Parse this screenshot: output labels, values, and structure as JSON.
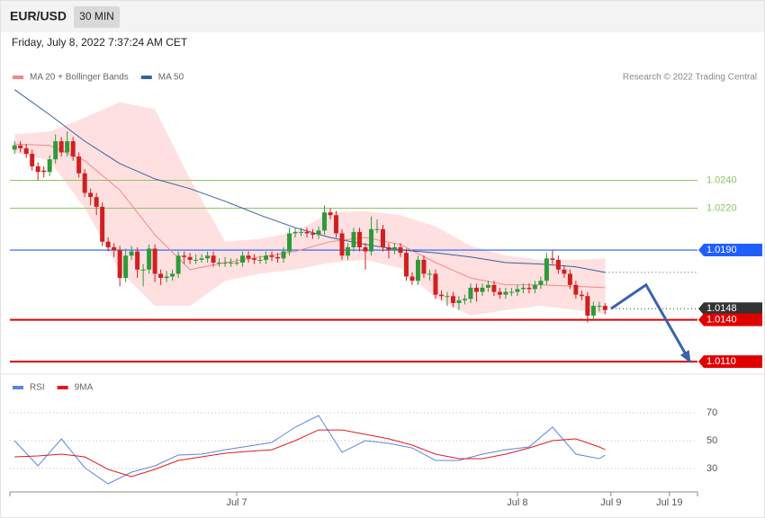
{
  "header": {
    "symbol": "EUR/USD",
    "interval": "30 MIN",
    "datetime": "Friday, July 8, 2022 7:37:24 AM CET"
  },
  "chart_data": [
    {
      "type": "candlestick",
      "credit": "Research © 2022 Trading Central",
      "xlim": [
        -0.8,
        116.8
      ],
      "ylim": [
        1.0103,
        1.0308
      ],
      "up_color": "#2e9a3a",
      "down_color": "#d21f1f",
      "ohlc": [
        [
          1.0262,
          1.0268,
          1.0259,
          1.0265
        ],
        [
          1.0265,
          1.0268,
          1.026,
          1.0263
        ],
        [
          1.0263,
          1.0266,
          1.0256,
          1.0259
        ],
        [
          1.0259,
          1.0262,
          1.0247,
          1.025
        ],
        [
          1.025,
          1.0253,
          1.024,
          1.0246
        ],
        [
          1.0247,
          1.025,
          1.0242,
          1.0246
        ],
        [
          1.0246,
          1.0258,
          1.0243,
          1.0255
        ],
        [
          1.0255,
          1.0273,
          1.0252,
          1.0268
        ],
        [
          1.0268,
          1.0271,
          1.0257,
          1.026
        ],
        [
          1.026,
          1.0275,
          1.0257,
          1.0268
        ],
        [
          1.0268,
          1.0271,
          1.0254,
          1.0257
        ],
        [
          1.0257,
          1.026,
          1.0242,
          1.0245
        ],
        [
          1.0245,
          1.0248,
          1.0228,
          1.0231
        ],
        [
          1.0231,
          1.0234,
          1.0222,
          1.0228
        ],
        [
          1.0228,
          1.0231,
          1.0215,
          1.0221
        ],
        [
          1.0221,
          1.0224,
          1.0193,
          1.0196
        ],
        [
          1.0196,
          1.0199,
          1.0189,
          1.0192
        ],
        [
          1.0192,
          1.0195,
          1.0185,
          1.019
        ],
        [
          1.019,
          1.0193,
          1.0164,
          1.017
        ],
        [
          1.017,
          1.0191,
          1.0167,
          1.0186
        ],
        [
          1.0186,
          1.0193,
          1.0183,
          1.0189
        ],
        [
          1.0189,
          1.0192,
          1.017,
          1.0176
        ],
        [
          1.0176,
          1.018,
          1.0164,
          1.0176
        ],
        [
          1.0176,
          1.0194,
          1.0173,
          1.0191
        ],
        [
          1.0191,
          1.0194,
          1.0167,
          1.0173
        ],
        [
          1.0173,
          1.0176,
          1.0165,
          1.017
        ],
        [
          1.017,
          1.0175,
          1.0167,
          1.0171
        ],
        [
          1.0171,
          1.0176,
          1.0168,
          1.0173
        ],
        [
          1.0173,
          1.0189,
          1.017,
          1.0186
        ],
        [
          1.0186,
          1.0189,
          1.018,
          1.0185
        ],
        [
          1.0185,
          1.0188,
          1.018,
          1.0183
        ],
        [
          1.0183,
          1.0187,
          1.018,
          1.0183
        ],
        [
          1.0183,
          1.0187,
          1.0181,
          1.0184
        ],
        [
          1.0184,
          1.0189,
          1.0181,
          1.0186
        ],
        [
          1.0186,
          1.0189,
          1.0178,
          1.0181
        ],
        [
          1.0181,
          1.0184,
          1.0178,
          1.0181
        ],
        [
          1.0181,
          1.0185,
          1.0178,
          1.0181
        ],
        [
          1.0181,
          1.0184,
          1.0178,
          1.0181
        ],
        [
          1.0181,
          1.0184,
          1.0179,
          1.0181
        ],
        [
          1.0181,
          1.0189,
          1.0178,
          1.0186
        ],
        [
          1.0186,
          1.0189,
          1.0181,
          1.0184
        ],
        [
          1.0184,
          1.0187,
          1.018,
          1.0183
        ],
        [
          1.0183,
          1.0186,
          1.018,
          1.0183
        ],
        [
          1.0183,
          1.0189,
          1.018,
          1.0186
        ],
        [
          1.0186,
          1.0189,
          1.0182,
          1.0185
        ],
        [
          1.0185,
          1.0188,
          1.0181,
          1.0184
        ],
        [
          1.0184,
          1.0192,
          1.0181,
          1.0189
        ],
        [
          1.0189,
          1.0206,
          1.0186,
          1.0202
        ],
        [
          1.0202,
          1.0206,
          1.0199,
          1.0203
        ],
        [
          1.0203,
          1.0206,
          1.02,
          1.0203
        ],
        [
          1.0203,
          1.0206,
          1.0199,
          1.0202
        ],
        [
          1.0202,
          1.0205,
          1.0198,
          1.0201
        ],
        [
          1.0201,
          1.0207,
          1.0198,
          1.0204
        ],
        [
          1.0204,
          1.0222,
          1.0201,
          1.0217
        ],
        [
          1.0217,
          1.022,
          1.0212,
          1.0215
        ],
        [
          1.0215,
          1.0218,
          1.0199,
          1.0202
        ],
        [
          1.0202,
          1.0205,
          1.0183,
          1.0186
        ],
        [
          1.0186,
          1.0195,
          1.0183,
          1.0192
        ],
        [
          1.0192,
          1.0206,
          1.0189,
          1.0203
        ],
        [
          1.0203,
          1.0206,
          1.0189,
          1.0192
        ],
        [
          1.0192,
          1.0195,
          1.0176,
          1.0189
        ],
        [
          1.0189,
          1.0214,
          1.0186,
          1.0205
        ],
        [
          1.0205,
          1.0212,
          1.0202,
          1.0205
        ],
        [
          1.0205,
          1.0208,
          1.0189,
          1.0192
        ],
        [
          1.0192,
          1.0195,
          1.0184,
          1.019
        ],
        [
          1.019,
          1.0195,
          1.0187,
          1.0192
        ],
        [
          1.0192,
          1.0195,
          1.0185,
          1.0188
        ],
        [
          1.0188,
          1.0191,
          1.0168,
          1.0171
        ],
        [
          1.0171,
          1.0174,
          1.0165,
          1.0168
        ],
        [
          1.0168,
          1.0186,
          1.0165,
          1.0183
        ],
        [
          1.0183,
          1.0186,
          1.017,
          1.0173
        ],
        [
          1.0173,
          1.0176,
          1.0168,
          1.0173
        ],
        [
          1.0173,
          1.0176,
          1.0155,
          1.0158
        ],
        [
          1.0158,
          1.0161,
          1.0154,
          1.0157
        ],
        [
          1.0157,
          1.016,
          1.015,
          1.0157
        ],
        [
          1.0157,
          1.016,
          1.0149,
          1.0152
        ],
        [
          1.0152,
          1.0157,
          1.0147,
          1.0154
        ],
        [
          1.0154,
          1.0158,
          1.0151,
          1.0155
        ],
        [
          1.0155,
          1.0166,
          1.0152,
          1.0163
        ],
        [
          1.0163,
          1.0166,
          1.0153,
          1.016
        ],
        [
          1.016,
          1.0166,
          1.0157,
          1.0163
        ],
        [
          1.0163,
          1.0168,
          1.016,
          1.0165
        ],
        [
          1.0165,
          1.0168,
          1.0157,
          1.016
        ],
        [
          1.016,
          1.0163,
          1.0155,
          1.0158
        ],
        [
          1.0158,
          1.0163,
          1.0155,
          1.016
        ],
        [
          1.016,
          1.0163,
          1.0157,
          1.016
        ],
        [
          1.016,
          1.0165,
          1.0157,
          1.0162
        ],
        [
          1.0162,
          1.0166,
          1.0159,
          1.0163
        ],
        [
          1.0163,
          1.0166,
          1.0159,
          1.0162
        ],
        [
          1.0162,
          1.0168,
          1.0159,
          1.0165
        ],
        [
          1.0165,
          1.0171,
          1.0162,
          1.0168
        ],
        [
          1.0168,
          1.0188,
          1.0165,
          1.0184
        ],
        [
          1.0184,
          1.019,
          1.018,
          1.0183
        ],
        [
          1.0183,
          1.0186,
          1.0173,
          1.0176
        ],
        [
          1.0176,
          1.0179,
          1.017,
          1.0173
        ],
        [
          1.0173,
          1.0176,
          1.0162,
          1.0165
        ],
        [
          1.0165,
          1.0168,
          1.0155,
          1.0158
        ],
        [
          1.0158,
          1.0161,
          1.0154,
          1.0157
        ],
        [
          1.0157,
          1.016,
          1.0138,
          1.0143
        ],
        [
          1.0143,
          1.0153,
          1.014,
          1.015
        ],
        [
          1.015,
          1.0153,
          1.0146,
          1.015
        ],
        [
          1.015,
          1.0152,
          1.0144,
          1.0147
        ]
      ],
      "series": [
        {
          "name": "MA 20 + Bollinger Bands",
          "color": "#ee8a8a",
          "band_color": "#ffd6d6",
          "x": [
            0,
            6,
            12,
            18,
            24,
            30,
            36,
            42,
            48,
            54,
            60,
            66,
            72,
            78,
            84,
            90,
            96,
            101
          ],
          "values": [
            1.0266,
            1.0265,
            1.0254,
            1.0233,
            1.0201,
            1.0176,
            1.0181,
            1.0185,
            1.0189,
            1.0196,
            1.0199,
            1.0194,
            1.0181,
            1.017,
            1.0165,
            1.0165,
            1.0164,
            1.0163
          ],
          "upper": [
            1.0273,
            1.0275,
            1.0285,
            1.0296,
            1.0291,
            1.0241,
            1.0196,
            1.0198,
            1.0203,
            1.0217,
            1.0218,
            1.0215,
            1.0207,
            1.0193,
            1.0186,
            1.0183,
            1.0183,
            1.0184
          ],
          "lower": [
            1.026,
            1.0254,
            1.022,
            1.0175,
            1.015,
            1.015,
            1.0168,
            1.0173,
            1.0176,
            1.0181,
            1.0183,
            1.0177,
            1.0156,
            1.0143,
            1.0147,
            1.015,
            1.0147,
            1.0144
          ]
        },
        {
          "name": "MA 50",
          "color": "#3a5fa0",
          "x": [
            0,
            6,
            12,
            18,
            24,
            30,
            36,
            42,
            48,
            54,
            60,
            66,
            72,
            78,
            84,
            90,
            96,
            101
          ],
          "values": [
            1.0305,
            1.0287,
            1.0268,
            1.0252,
            1.0241,
            1.0234,
            1.0225,
            1.0215,
            1.0206,
            1.0199,
            1.0194,
            1.019,
            1.0188,
            1.0185,
            1.0181,
            1.018,
            1.0178,
            1.0174
          ]
        }
      ],
      "levels": [
        {
          "value": 1.024,
          "label": "1.0240",
          "color": "#8cc460",
          "style": "text",
          "dash": false
        },
        {
          "value": 1.022,
          "label": "1.0220",
          "color": "#8cc460",
          "style": "text",
          "dash": false
        },
        {
          "value": 1.019,
          "label": "1.0190",
          "color": "#1f5fff",
          "style": "tag",
          "dash": false
        },
        {
          "value": 1.0148,
          "label": "1.0148",
          "color": "#333333",
          "style": "tag",
          "dash": true
        },
        {
          "value": 1.014,
          "label": "1.0140",
          "color": "#e10000",
          "style": "tag",
          "dash": false
        },
        {
          "value": 1.011,
          "label": "1.0110",
          "color": "#e10000",
          "style": "tag",
          "dash": false
        }
      ],
      "forecast": {
        "color": "#3a64a8",
        "x": [
          102,
          108,
          115.5
        ],
        "values": [
          1.0148,
          1.0165,
          1.011
        ]
      }
    },
    {
      "type": "line",
      "xlim": [
        -0.8,
        116.8
      ],
      "ylim": [
        13.2,
        82.3
      ],
      "yticks": [
        30,
        50,
        70
      ],
      "grid": true,
      "xticks": [
        {
          "value": 38,
          "label": "Jul 7"
        },
        {
          "value": 86,
          "label": "Jul 8"
        },
        {
          "value": 102,
          "label": "Jul 9"
        },
        {
          "value": 112,
          "label": "Jul 19"
        }
      ],
      "x": [
        0,
        4,
        8,
        12,
        16,
        20,
        24,
        28,
        32,
        36,
        40,
        44,
        48,
        52,
        56,
        60,
        64,
        68,
        72,
        76,
        80,
        84,
        88,
        92,
        96,
        100,
        101
      ],
      "series": [
        {
          "name": "RSI",
          "color": "#5b86d9",
          "values": [
            50.0,
            31.9,
            51.3,
            30.6,
            19.0,
            27.4,
            31.9,
            39.7,
            40.3,
            43.5,
            46.1,
            48.7,
            59.7,
            68.1,
            41.6,
            50.0,
            48.1,
            44.8,
            35.8,
            35.8,
            40.3,
            43.5,
            45.5,
            59.7,
            40.3,
            37.1,
            39.7
          ]
        },
        {
          "name": "9MA",
          "color": "#e01b1b",
          "values": [
            38.4,
            39.0,
            40.3,
            38.4,
            29.4,
            24.2,
            29.4,
            35.8,
            38.4,
            41.0,
            42.3,
            43.5,
            50.0,
            57.7,
            57.7,
            54.5,
            51.3,
            46.8,
            40.3,
            37.1,
            37.1,
            40.3,
            44.8,
            50.0,
            51.3,
            45.5,
            43.5
          ]
        }
      ]
    }
  ]
}
